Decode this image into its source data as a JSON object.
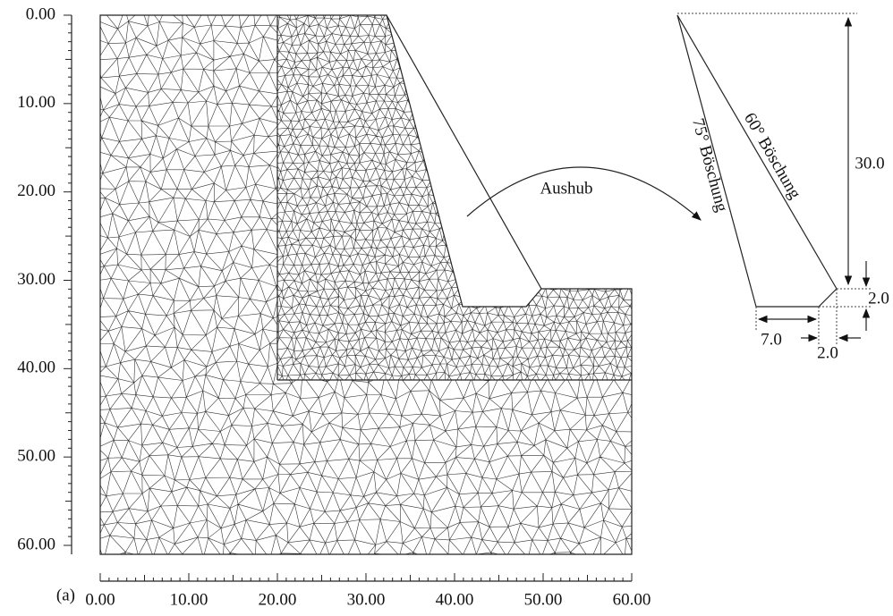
{
  "axes": {
    "y_ticks": [
      "0.00",
      "10.00",
      "20.00",
      "30.00",
      "40.00",
      "50.00",
      "60.00"
    ],
    "x_ticks": [
      "0.00",
      "10.00",
      "20.00",
      "30.00",
      "40.00",
      "50.00",
      "60.00"
    ]
  },
  "panel_label": "(a)",
  "annotations": {
    "excavation": "Aushub",
    "slope_75": "75° Böschung",
    "slope_60": "60° Böschung",
    "height": "30.0",
    "step_height": "2.0",
    "berm_width": "7.0",
    "step_width": "2.0"
  }
}
